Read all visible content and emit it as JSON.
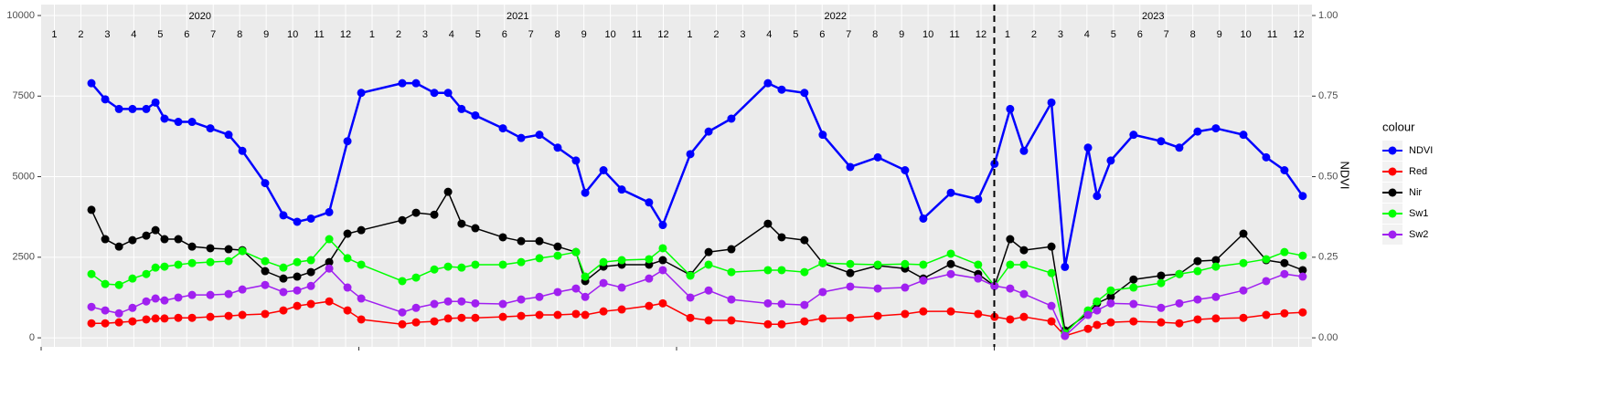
{
  "chart_data": {
    "type": "line",
    "xlim": [
      0,
      48
    ],
    "xticks": [
      {
        "value": 0.5,
        "label": "1"
      },
      {
        "value": 1.5,
        "label": "2"
      },
      {
        "value": 2.5,
        "label": "3"
      },
      {
        "value": 3.5,
        "label": "4"
      },
      {
        "value": 4.5,
        "label": "5"
      },
      {
        "value": 5.5,
        "label": "6"
      },
      {
        "value": 6.5,
        "label": "7"
      },
      {
        "value": 7.5,
        "label": "8"
      },
      {
        "value": 8.5,
        "label": "9"
      },
      {
        "value": 9.5,
        "label": "10"
      },
      {
        "value": 10.5,
        "label": "11"
      },
      {
        "value": 11.5,
        "label": "12"
      },
      {
        "value": 12.5,
        "label": "1"
      },
      {
        "value": 13.5,
        "label": "2"
      },
      {
        "value": 14.5,
        "label": "3"
      },
      {
        "value": 15.5,
        "label": "4"
      },
      {
        "value": 16.5,
        "label": "5"
      },
      {
        "value": 17.5,
        "label": "6"
      },
      {
        "value": 18.5,
        "label": "7"
      },
      {
        "value": 19.5,
        "label": "8"
      },
      {
        "value": 20.5,
        "label": "9"
      },
      {
        "value": 21.5,
        "label": "10"
      },
      {
        "value": 22.5,
        "label": "11"
      },
      {
        "value": 23.5,
        "label": "12"
      },
      {
        "value": 24.5,
        "label": "1"
      },
      {
        "value": 25.5,
        "label": "2"
      },
      {
        "value": 26.5,
        "label": "3"
      },
      {
        "value": 27.5,
        "label": "4"
      },
      {
        "value": 28.5,
        "label": "5"
      },
      {
        "value": 29.5,
        "label": "6"
      },
      {
        "value": 30.5,
        "label": "7"
      },
      {
        "value": 31.5,
        "label": "8"
      },
      {
        "value": 32.5,
        "label": "9"
      },
      {
        "value": 33.5,
        "label": "10"
      },
      {
        "value": 34.5,
        "label": "11"
      },
      {
        "value": 35.5,
        "label": "12"
      },
      {
        "value": 36.5,
        "label": "1"
      },
      {
        "value": 37.5,
        "label": "2"
      },
      {
        "value": 38.5,
        "label": "3"
      },
      {
        "value": 39.5,
        "label": "4"
      },
      {
        "value": 40.5,
        "label": "5"
      },
      {
        "value": 41.5,
        "label": "6"
      },
      {
        "value": 42.5,
        "label": "7"
      },
      {
        "value": 43.5,
        "label": "8"
      },
      {
        "value": 44.5,
        "label": "9"
      },
      {
        "value": 45.5,
        "label": "10"
      },
      {
        "value": 46.5,
        "label": "11"
      },
      {
        "value": 47.5,
        "label": "12"
      }
    ],
    "year_labels": [
      {
        "value": 6,
        "label": "2020"
      },
      {
        "value": 18,
        "label": "2021"
      },
      {
        "value": 30,
        "label": "2022"
      },
      {
        "value": 42,
        "label": "2023"
      }
    ],
    "year_breaks": [
      0,
      12,
      24,
      36
    ],
    "vline": 36,
    "ylim": [
      -280,
      10340
    ],
    "yticks": [
      0,
      2500,
      5000,
      7500,
      10000
    ],
    "y2lim": [
      -0.028,
      1.034
    ],
    "y2ticks": [
      {
        "value": 0,
        "label": "0.00"
      },
      {
        "value": 0.25,
        "label": "0.25"
      },
      {
        "value": 0.5,
        "label": "0.50"
      },
      {
        "value": 0.75,
        "label": "0.75"
      },
      {
        "value": 1,
        "label": "1.00"
      }
    ],
    "y2label": "NDVI",
    "legend_title": "colour",
    "legend": "right",
    "grid": true,
    "x": [
      1.9,
      2.42,
      2.94,
      3.45,
      3.97,
      4.32,
      4.66,
      5.18,
      5.7,
      6.39,
      7.08,
      7.6,
      8.46,
      9.15,
      9.67,
      10.19,
      10.88,
      11.57,
      12.09,
      13.64,
      14.16,
      14.85,
      15.37,
      15.88,
      16.4,
      17.44,
      18.13,
      18.82,
      19.51,
      20.2,
      20.55,
      21.24,
      21.93,
      22.96,
      23.48,
      24.52,
      25.21,
      26.07,
      27.45,
      27.97,
      28.83,
      29.52,
      30.56,
      31.6,
      32.63,
      33.32,
      34.36,
      35.39,
      36.01,
      36.6,
      37.12,
      38.16,
      38.67,
      39.54,
      39.88,
      40.4,
      41.26,
      42.3,
      42.99,
      43.68,
      44.37,
      45.41,
      46.27,
      46.96,
      47.65
    ],
    "series": [
      {
        "name": "NDVI",
        "color": "#0000ff",
        "axis": "y2",
        "values": [
          0.79,
          0.74,
          0.71,
          0.71,
          0.71,
          0.73,
          0.68,
          0.67,
          0.67,
          0.65,
          0.63,
          0.58,
          0.48,
          0.38,
          0.36,
          0.37,
          0.39,
          0.61,
          0.76,
          0.79,
          0.79,
          0.76,
          0.76,
          0.71,
          0.69,
          0.65,
          0.62,
          0.63,
          0.59,
          0.55,
          0.45,
          0.52,
          0.46,
          0.42,
          0.35,
          0.57,
          0.64,
          0.68,
          0.79,
          0.77,
          0.76,
          0.63,
          0.53,
          0.56,
          0.52,
          0.37,
          0.45,
          0.43,
          0.54,
          0.71,
          0.58,
          0.73,
          0.22,
          0.59,
          0.44,
          0.55,
          0.63,
          0.61,
          0.59,
          0.64,
          0.65,
          0.63,
          0.56,
          0.52,
          0.44
        ]
      },
      {
        "name": "Red",
        "color": "#ff0000",
        "values": [
          450,
          450,
          480,
          510,
          570,
          600,
          600,
          620,
          620,
          650,
          680,
          710,
          740,
          850,
          990,
          1050,
          1130,
          850,
          570,
          420,
          480,
          510,
          600,
          620,
          620,
          650,
          680,
          710,
          710,
          740,
          710,
          820,
          880,
          990,
          1070,
          620,
          540,
          540,
          420,
          420,
          510,
          600,
          620,
          680,
          740,
          820,
          820,
          740,
          650,
          570,
          650,
          510,
          60,
          280,
          400,
          480,
          510,
          480,
          450,
          570,
          600,
          620,
          710,
          760,
          790
        ]
      },
      {
        "name": "Nir",
        "color": "#000000",
        "values": [
          3970,
          3060,
          2830,
          3030,
          3170,
          3340,
          3060,
          3060,
          2830,
          2780,
          2750,
          2720,
          2070,
          1840,
          1900,
          2040,
          2350,
          3230,
          3340,
          3650,
          3880,
          3820,
          4530,
          3540,
          3400,
          3120,
          3000,
          3000,
          2830,
          2660,
          1760,
          2210,
          2270,
          2270,
          2410,
          1950,
          2660,
          2750,
          3540,
          3120,
          3030,
          2320,
          2010,
          2240,
          2150,
          1840,
          2290,
          1980,
          1610,
          3060,
          2720,
          2830,
          230,
          760,
          1070,
          1270,
          1810,
          1930,
          1980,
          2380,
          2410,
          3230,
          2410,
          2320,
          2100
        ]
      },
      {
        "name": "Sw1",
        "color": "#00ff00",
        "values": [
          1980,
          1670,
          1640,
          1840,
          1980,
          2180,
          2210,
          2270,
          2320,
          2350,
          2380,
          2690,
          2380,
          2180,
          2350,
          2410,
          3060,
          2470,
          2270,
          1760,
          1870,
          2120,
          2210,
          2180,
          2270,
          2270,
          2350,
          2470,
          2550,
          2660,
          1900,
          2350,
          2410,
          2440,
          2780,
          1930,
          2270,
          2040,
          2100,
          2100,
          2040,
          2320,
          2290,
          2270,
          2290,
          2270,
          2610,
          2270,
          1610,
          2270,
          2270,
          2010,
          140,
          850,
          1130,
          1470,
          1560,
          1700,
          1980,
          2070,
          2210,
          2320,
          2440,
          2660,
          2550
        ]
      },
      {
        "name": "Sw2",
        "color": "#a020f0",
        "values": [
          960,
          850,
          760,
          930,
          1130,
          1220,
          1160,
          1250,
          1330,
          1330,
          1360,
          1500,
          1640,
          1420,
          1470,
          1610,
          2150,
          1560,
          1220,
          790,
          930,
          1050,
          1130,
          1130,
          1070,
          1050,
          1190,
          1270,
          1420,
          1530,
          1270,
          1700,
          1560,
          1840,
          2100,
          1250,
          1470,
          1190,
          1070,
          1050,
          1020,
          1420,
          1590,
          1530,
          1560,
          1780,
          1980,
          1840,
          1610,
          1530,
          1360,
          990,
          60,
          710,
          850,
          1070,
          1050,
          930,
          1070,
          1190,
          1270,
          1470,
          1760,
          1980,
          1900
        ]
      }
    ]
  }
}
